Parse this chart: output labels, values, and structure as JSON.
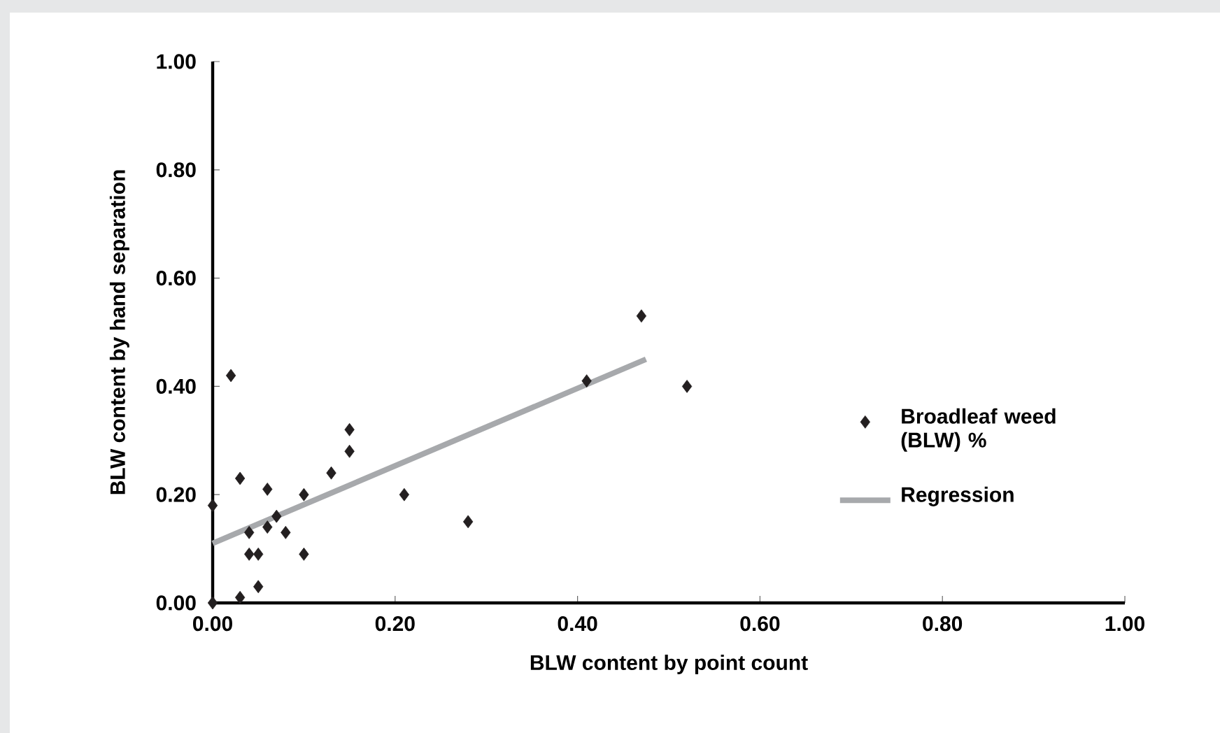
{
  "chart_data": {
    "type": "scatter",
    "xlabel": "BLW content by point count",
    "ylabel": "BLW content by hand separation",
    "xlim": [
      0,
      1
    ],
    "ylim": [
      0,
      1
    ],
    "xticks": [
      {
        "value": 0,
        "label": "0.00"
      },
      {
        "value": 0.2,
        "label": "0.20"
      },
      {
        "value": 0.4,
        "label": "0.40"
      },
      {
        "value": 0.6,
        "label": "0.60"
      },
      {
        "value": 0.8,
        "label": "0.80"
      },
      {
        "value": 1,
        "label": "1.00"
      }
    ],
    "yticks": [
      {
        "value": 0,
        "label": "0.00"
      },
      {
        "value": 0.2,
        "label": "0.20"
      },
      {
        "value": 0.4,
        "label": "0.40"
      },
      {
        "value": 0.6,
        "label": "0.60"
      },
      {
        "value": 0.8,
        "label": "0.80"
      },
      {
        "value": 1,
        "label": "1.00"
      }
    ],
    "legend": "right",
    "series": [
      {
        "name": "Broadleaf weed (BLW) %",
        "marker": "diamond",
        "color": "#231f20",
        "x": [
          0.0,
          0.0,
          0.02,
          0.03,
          0.03,
          0.04,
          0.04,
          0.05,
          0.05,
          0.06,
          0.06,
          0.07,
          0.08,
          0.1,
          0.1,
          0.13,
          0.15,
          0.15,
          0.21,
          0.28,
          0.41,
          0.47,
          0.52
        ],
        "values": [
          0.0,
          0.18,
          0.42,
          0.01,
          0.23,
          0.09,
          0.13,
          0.09,
          0.03,
          0.14,
          0.21,
          0.16,
          0.13,
          0.09,
          0.2,
          0.24,
          0.32,
          0.28,
          0.2,
          0.15,
          0.41,
          0.53,
          0.4
        ]
      },
      {
        "name": "Regression",
        "type": "line",
        "marker": "none",
        "color": "#a7a9ac",
        "x": [
          0,
          0.475
        ],
        "values": [
          0.11,
          0.45
        ]
      }
    ]
  }
}
